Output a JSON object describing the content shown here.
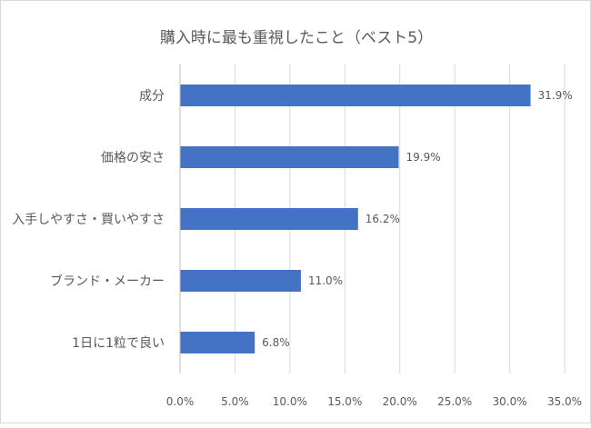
{
  "chart_data": {
    "type": "bar",
    "orientation": "horizontal",
    "title": "購入時に最も重視したこと（ベスト5）",
    "categories": [
      "成分",
      "価格の安さ",
      "入手しやすさ・買いやすさ",
      "ブランド・メーカー",
      "1日に1粒で良い"
    ],
    "values": [
      31.9,
      19.9,
      16.2,
      11.0,
      6.8
    ],
    "value_labels": [
      "31.9%",
      "19.9%",
      "16.2%",
      "11.0%",
      "6.8%"
    ],
    "xlim": [
      0,
      35
    ],
    "xticks": [
      "0.0%",
      "5.0%",
      "10.0%",
      "15.0%",
      "20.0%",
      "25.0%",
      "30.0%",
      "35.0%"
    ],
    "grid": "vertical",
    "legend": "none",
    "bar_color": "#4472c4",
    "grid_color": "#d9d9d9",
    "text_color": "#595959"
  }
}
